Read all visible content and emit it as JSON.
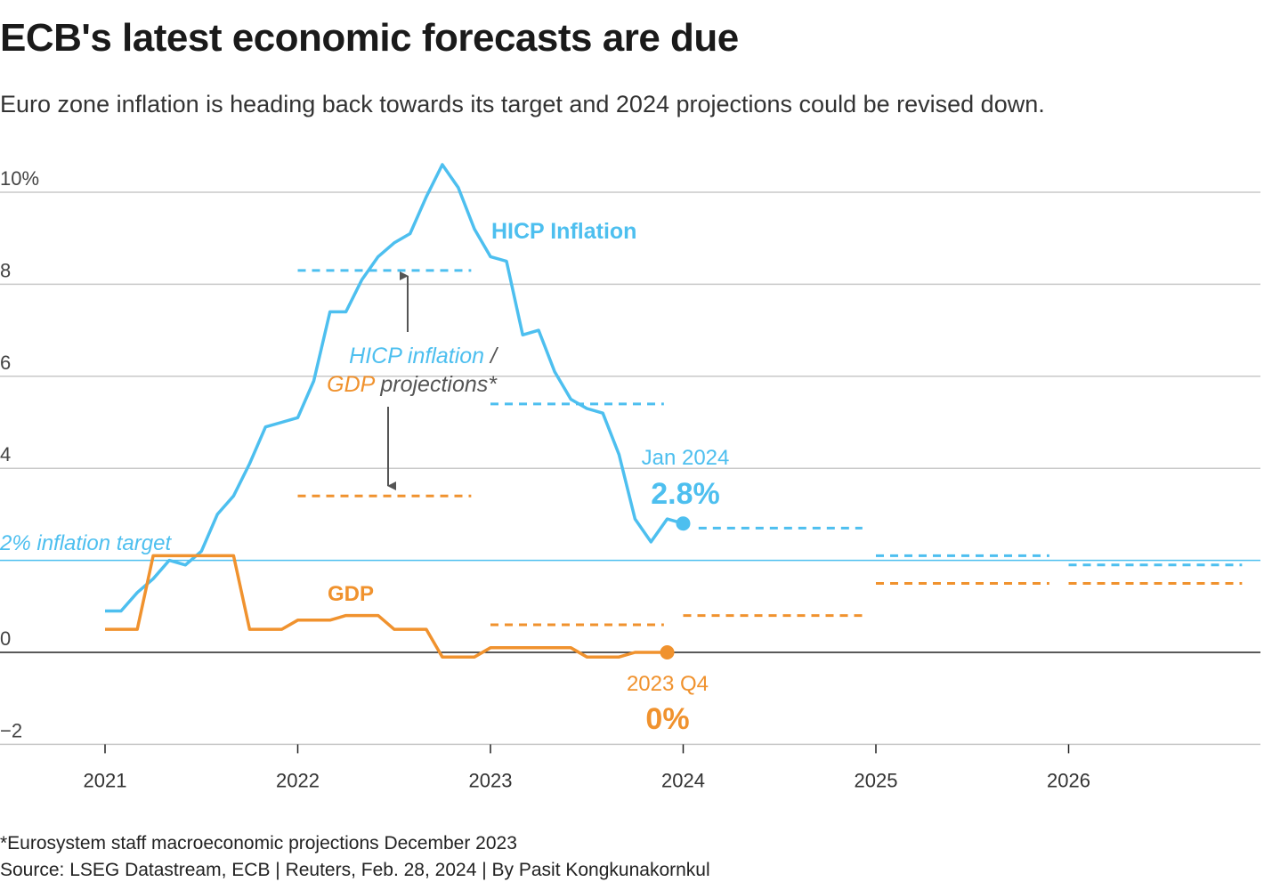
{
  "header": {
    "title": "ECB's latest economic forecasts are due",
    "subtitle": "Euro zone inflation is heading back towards its target and 2024 projections could be revised down."
  },
  "footer": {
    "note": "*Eurosystem staff macroeconomic projections December 2023",
    "source": "Source: LSEG Datastream, ECB | Reuters, Feb. 28, 2024 | By Pasit Kongkunakornkul"
  },
  "colors": {
    "inflation": "#4dbfef",
    "gdp": "#f0922e",
    "grid": "#c8c8c8",
    "axis": "#222222",
    "arrow": "#555555"
  },
  "annotations": {
    "target_label": "2% inflation target",
    "hicp_label": "HICP Inflation",
    "gdp_label": "GDP",
    "proj_hicp": "HICP inflation",
    "proj_slash": " /",
    "proj_gdp": "GDP",
    "proj_rest": " projections*",
    "latest_inflation_date": "Jan 2024",
    "latest_inflation_value": "2.8%",
    "latest_gdp_date": "2023 Q4",
    "latest_gdp_value": "0%"
  },
  "chart_data": {
    "type": "line",
    "x_ticks": [
      "2021",
      "2022",
      "2023",
      "2024",
      "2025",
      "2026"
    ],
    "y_ticks": [
      "10%",
      "8",
      "6",
      "4",
      "0",
      "−2"
    ],
    "ylim": [
      -2,
      10
    ],
    "xlim": [
      2021,
      2027
    ],
    "target": 2,
    "series": [
      {
        "name": "HICP Inflation",
        "points": [
          [
            2021.0,
            0.9
          ],
          [
            2021.083,
            0.9
          ],
          [
            2021.167,
            1.3
          ],
          [
            2021.25,
            1.6
          ],
          [
            2021.333,
            2.0
          ],
          [
            2021.417,
            1.9
          ],
          [
            2021.5,
            2.2
          ],
          [
            2021.583,
            3.0
          ],
          [
            2021.667,
            3.4
          ],
          [
            2021.75,
            4.1
          ],
          [
            2021.833,
            4.9
          ],
          [
            2021.917,
            5.0
          ],
          [
            2022.0,
            5.1
          ],
          [
            2022.083,
            5.9
          ],
          [
            2022.167,
            7.4
          ],
          [
            2022.25,
            7.4
          ],
          [
            2022.333,
            8.1
          ],
          [
            2022.417,
            8.6
          ],
          [
            2022.5,
            8.9
          ],
          [
            2022.583,
            9.1
          ],
          [
            2022.667,
            9.9
          ],
          [
            2022.75,
            10.6
          ],
          [
            2022.833,
            10.1
          ],
          [
            2022.917,
            9.2
          ],
          [
            2023.0,
            8.6
          ],
          [
            2023.083,
            8.5
          ],
          [
            2023.167,
            6.9
          ],
          [
            2023.25,
            7.0
          ],
          [
            2023.333,
            6.1
          ],
          [
            2023.417,
            5.5
          ],
          [
            2023.5,
            5.3
          ],
          [
            2023.583,
            5.2
          ],
          [
            2023.667,
            4.3
          ],
          [
            2023.75,
            2.9
          ],
          [
            2023.833,
            2.4
          ],
          [
            2023.917,
            2.9
          ],
          [
            2024.0,
            2.8
          ]
        ]
      },
      {
        "name": "GDP",
        "points": [
          [
            2021.0,
            0.5
          ],
          [
            2021.167,
            0.5
          ],
          [
            2021.25,
            2.1
          ],
          [
            2021.667,
            2.1
          ],
          [
            2021.75,
            0.5
          ],
          [
            2021.917,
            0.5
          ],
          [
            2022.0,
            0.7
          ],
          [
            2022.167,
            0.7
          ],
          [
            2022.25,
            0.8
          ],
          [
            2022.417,
            0.8
          ],
          [
            2022.5,
            0.5
          ],
          [
            2022.667,
            0.5
          ],
          [
            2022.75,
            -0.1
          ],
          [
            2022.917,
            -0.1
          ],
          [
            2023.0,
            0.1
          ],
          [
            2023.417,
            0.1
          ],
          [
            2023.5,
            -0.1
          ],
          [
            2023.667,
            -0.1
          ],
          [
            2023.75,
            0.0
          ],
          [
            2023.917,
            0.0
          ]
        ]
      }
    ],
    "projections": {
      "inflation": [
        [
          2022.0,
          2022.9,
          8.3
        ],
        [
          2023.0,
          2023.9,
          5.4
        ],
        [
          2024.08,
          2024.93,
          2.7
        ],
        [
          2025.0,
          2025.9,
          2.1
        ],
        [
          2026.0,
          2026.9,
          1.9
        ]
      ],
      "gdp": [
        [
          2022.0,
          2022.9,
          3.4
        ],
        [
          2023.0,
          2023.9,
          0.6
        ],
        [
          2024.0,
          2024.93,
          0.8
        ],
        [
          2025.0,
          2025.9,
          1.5
        ],
        [
          2026.0,
          2026.9,
          1.5
        ]
      ]
    }
  }
}
